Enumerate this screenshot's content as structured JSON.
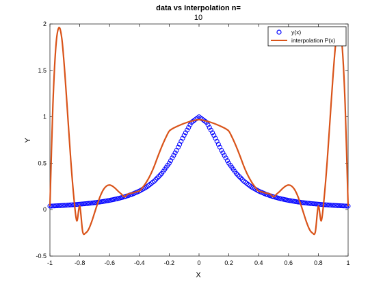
{
  "chart_data": {
    "type": "line",
    "title": "data vs Interpolation n=",
    "subtitle": "10",
    "xlabel": "X",
    "ylabel": "Y",
    "xlim": [
      -1,
      1
    ],
    "ylim": [
      -0.5,
      2
    ],
    "xticks": [
      "-1",
      "-0.8",
      "-0.6",
      "-0.4",
      "-0.2",
      "0",
      "0.2",
      "0.4",
      "0.6",
      "0.8",
      "1"
    ],
    "yticks": [
      "-0.5",
      "0",
      "0.5",
      "1",
      "1.5",
      "2"
    ],
    "grid": false,
    "legend_position": "top-right",
    "series": [
      {
        "name": "y(x)",
        "style": "markers",
        "marker": "circle",
        "color": "#0000ff",
        "x": [
          -1,
          -0.95,
          -0.9,
          -0.85,
          -0.8,
          -0.75,
          -0.7,
          -0.65,
          -0.6,
          -0.55,
          -0.5,
          -0.45,
          -0.4,
          -0.35,
          -0.3,
          -0.25,
          -0.2,
          -0.15,
          -0.1,
          -0.05,
          0,
          0.05,
          0.1,
          0.15,
          0.2,
          0.25,
          0.3,
          0.35,
          0.4,
          0.45,
          0.5,
          0.55,
          0.6,
          0.65,
          0.7,
          0.75,
          0.8,
          0.85,
          0.9,
          0.95,
          1
        ],
        "y": [
          0.038,
          0.042,
          0.047,
          0.052,
          0.059,
          0.066,
          0.075,
          0.086,
          0.1,
          0.117,
          0.138,
          0.165,
          0.2,
          0.246,
          0.308,
          0.39,
          0.5,
          0.64,
          0.8,
          0.941,
          1,
          0.941,
          0.8,
          0.64,
          0.5,
          0.39,
          0.308,
          0.246,
          0.2,
          0.165,
          0.138,
          0.117,
          0.1,
          0.086,
          0.075,
          0.066,
          0.059,
          0.052,
          0.047,
          0.042,
          0.038
        ]
      },
      {
        "name": "interpolation P(x)",
        "style": "line",
        "color": "#d95319",
        "x": [
          -1,
          -0.98,
          -0.96,
          -0.94,
          -0.92,
          -0.9,
          -0.88,
          -0.86,
          -0.84,
          -0.82,
          -0.8,
          -0.78,
          -0.76,
          -0.74,
          -0.72,
          -0.7,
          -0.68,
          -0.66,
          -0.64,
          -0.62,
          -0.6,
          -0.58,
          -0.56,
          -0.54,
          -0.52,
          -0.5,
          -0.48,
          -0.46,
          -0.44,
          -0.42,
          -0.4,
          -0.38,
          -0.36,
          -0.34,
          -0.32,
          -0.3,
          -0.28,
          -0.26,
          -0.24,
          -0.22,
          -0.2,
          -0.18,
          -0.16,
          -0.14,
          -0.12,
          -0.1,
          -0.08,
          -0.06,
          -0.04,
          -0.02,
          0,
          0.02,
          0.04,
          0.06,
          0.08,
          0.1,
          0.12,
          0.14,
          0.16,
          0.18,
          0.2,
          0.22,
          0.24,
          0.26,
          0.28,
          0.3,
          0.32,
          0.34,
          0.36,
          0.38,
          0.4,
          0.42,
          0.44,
          0.46,
          0.48,
          0.5,
          0.52,
          0.54,
          0.56,
          0.58,
          0.6,
          0.62,
          0.64,
          0.66,
          0.68,
          0.7,
          0.72,
          0.74,
          0.76,
          0.78,
          0.8,
          0.82,
          0.84,
          0.86,
          0.88,
          0.9,
          0.92,
          0.94,
          0.96,
          0.98,
          1
        ],
        "y": [
          0.038,
          1.13,
          1.76,
          1.96,
          1.84,
          1.47,
          1.0,
          0.53,
          0.14,
          -0.12,
          0.038,
          -0.24,
          -0.25,
          -0.21,
          -0.13,
          -0.031,
          0.068,
          0.155,
          0.219,
          0.255,
          0.265,
          0.253,
          0.227,
          0.195,
          0.167,
          0.138,
          0.165,
          0.175,
          0.183,
          0.193,
          0.2,
          0.236,
          0.279,
          0.332,
          0.395,
          0.47,
          0.556,
          0.639,
          0.716,
          0.786,
          0.846,
          0.87,
          0.887,
          0.902,
          0.916,
          0.929,
          0.94,
          0.95,
          0.958,
          0.965,
          0.97,
          0.965,
          0.958,
          0.95,
          0.94,
          0.929,
          0.916,
          0.902,
          0.887,
          0.87,
          0.846,
          0.786,
          0.716,
          0.639,
          0.556,
          0.47,
          0.395,
          0.332,
          0.279,
          0.236,
          0.2,
          0.193,
          0.183,
          0.175,
          0.165,
          0.138,
          0.167,
          0.195,
          0.227,
          0.253,
          0.265,
          0.255,
          0.219,
          0.155,
          0.068,
          -0.031,
          -0.13,
          -0.21,
          -0.25,
          -0.24,
          0.038,
          -0.12,
          0.14,
          0.53,
          1.0,
          1.47,
          1.84,
          1.96,
          1.76,
          1.13,
          0.038
        ]
      }
    ]
  }
}
